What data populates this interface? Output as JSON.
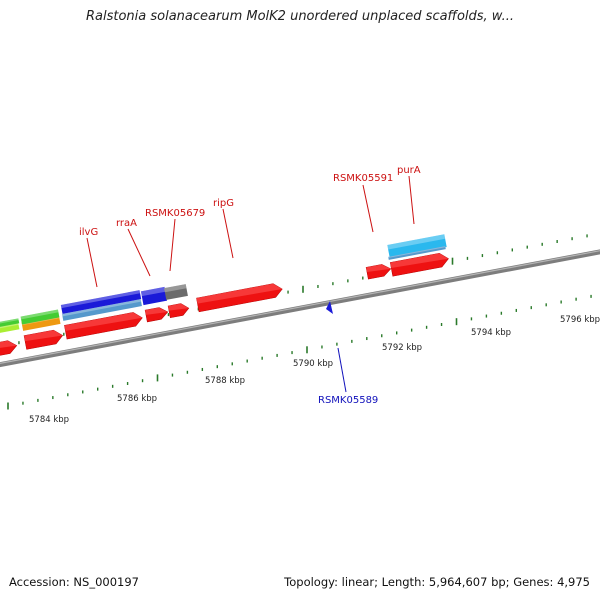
{
  "title": "Ralstonia solanacearum MolK2 unordered unplaced scaffolds, w...",
  "footer": {
    "accession": "Accession: NS_000197",
    "topology": "Topology: linear; Length: 5,964,607 bp; Genes: 4,975"
  },
  "scale_labels": [
    "5784 kbp",
    "5786 kbp",
    "5788 kbp",
    "5790 kbp",
    "5792 kbp",
    "5794 kbp",
    "5796 kbp"
  ],
  "gene_labels": {
    "top": [
      "ilvG",
      "rraA",
      "RSMK05679",
      "ripG",
      "RSMK05591",
      "purA"
    ],
    "bottom": [
      "RSMK05589"
    ]
  },
  "colors": {
    "label_forward": "#cc1111",
    "label_reverse": "#1111bb",
    "tick": "#2a7a2a",
    "backbone": "#8a8a8a",
    "gene_red": "#ee1111",
    "gene_blue": "#1a1ad8",
    "gene_cyan": "#2ab8ee",
    "gene_gray": "#6b6b6b",
    "gene_green": "#44cc33",
    "gene_orange": "#ee9911",
    "gene_lime": "#aaee33",
    "gene_steel": "#5599cc"
  }
}
